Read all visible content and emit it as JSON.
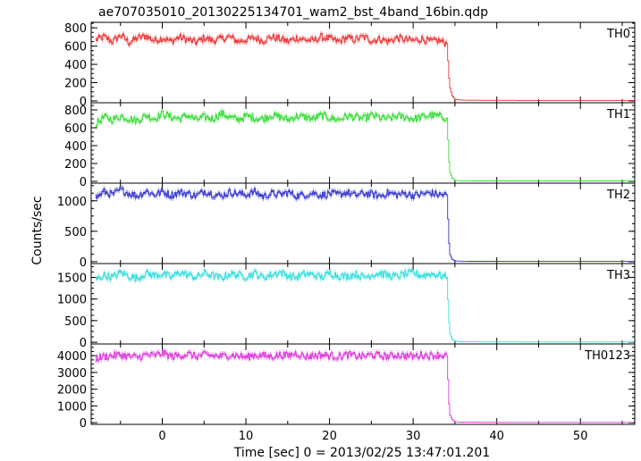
{
  "chart_data": {
    "type": "line",
    "title": "ae707035010_20130225134701_wam2_bst_4band_16bin.qdp",
    "xlabel": "Time [sec] 0 = 2013/02/25 13:47:01.201",
    "ylabel": "Counts/sec",
    "xlim": [
      -8.5,
      56.5
    ],
    "xticks": [
      0,
      10,
      20,
      30,
      40,
      50
    ],
    "x_tick_labels": [
      "0",
      "10",
      "20",
      "30",
      "40",
      "50"
    ],
    "drop_time": 34.0,
    "panels": [
      {
        "name": "TH0",
        "color": "#ee3333",
        "ylim": [
          -20,
          860
        ],
        "yticks": [
          0,
          200,
          400,
          600,
          800
        ],
        "y_tick_labels": [
          "0",
          "200",
          "400",
          "600",
          "800"
        ],
        "series": {
          "x": [
            -8,
            -7,
            -6,
            -5,
            -4,
            -3,
            -2,
            -1,
            0,
            1,
            2,
            3,
            4,
            5,
            6,
            7,
            8,
            9,
            10,
            11,
            12,
            13,
            14,
            15,
            16,
            17,
            18,
            19,
            20,
            21,
            22,
            23,
            24,
            25,
            26,
            27,
            28,
            29,
            30,
            31,
            32,
            33,
            34,
            34.3,
            34.6,
            35,
            36,
            38,
            40,
            42,
            44,
            46,
            48,
            50,
            52,
            54,
            56
          ],
          "y": [
            670,
            700,
            650,
            720,
            640,
            690,
            710,
            660,
            690,
            650,
            700,
            670,
            640,
            690,
            660,
            680,
            700,
            650,
            670,
            690,
            660,
            700,
            680,
            650,
            690,
            670,
            660,
            700,
            680,
            650,
            690,
            670,
            700,
            660,
            680,
            650,
            690,
            670,
            660,
            680,
            650,
            660,
            630,
            170,
            60,
            15,
            8,
            7,
            6,
            6,
            5,
            5,
            5,
            5,
            5,
            5,
            5
          ]
        }
      },
      {
        "name": "TH1",
        "color": "#33dd33",
        "ylim": [
          -20,
          880
        ],
        "yticks": [
          0,
          200,
          400,
          600,
          800
        ],
        "y_tick_labels": [
          "0",
          "200",
          "400",
          "600",
          "800"
        ],
        "series": {
          "x": [
            -8,
            -7,
            -6,
            -5,
            -4,
            -3,
            -2,
            -1,
            0,
            1,
            2,
            3,
            4,
            5,
            6,
            7,
            8,
            9,
            10,
            11,
            12,
            13,
            14,
            15,
            16,
            17,
            18,
            19,
            20,
            21,
            22,
            23,
            24,
            25,
            26,
            27,
            28,
            29,
            30,
            31,
            32,
            33,
            34,
            34.3,
            34.6,
            35,
            36,
            38,
            40,
            42,
            44,
            46,
            48,
            50,
            52,
            54,
            56
          ],
          "y": [
            640,
            720,
            690,
            730,
            700,
            680,
            740,
            700,
            760,
            720,
            700,
            740,
            690,
            720,
            700,
            760,
            720,
            690,
            730,
            710,
            700,
            740,
            720,
            690,
            730,
            720,
            700,
            740,
            710,
            690,
            730,
            720,
            700,
            740,
            710,
            700,
            730,
            720,
            700,
            720,
            740,
            730,
            710,
            120,
            40,
            10,
            6,
            5,
            5,
            5,
            5,
            5,
            5,
            5,
            5,
            5,
            5
          ]
        }
      },
      {
        "name": "TH2",
        "color": "#3333cc",
        "ylim": [
          -30,
          1290
        ],
        "yticks": [
          0,
          500,
          1000
        ],
        "y_tick_labels": [
          "0",
          "500",
          "1000"
        ],
        "series": {
          "x": [
            -8,
            -7,
            -6,
            -5,
            -4,
            -3,
            -2,
            -1,
            0,
            1,
            2,
            3,
            4,
            5,
            6,
            7,
            8,
            9,
            10,
            11,
            12,
            13,
            14,
            15,
            16,
            17,
            18,
            19,
            20,
            21,
            22,
            23,
            24,
            25,
            26,
            27,
            28,
            29,
            30,
            31,
            32,
            33,
            34,
            34.3,
            34.6,
            35,
            36,
            38,
            40,
            42,
            44,
            46,
            48,
            50,
            52,
            54,
            56
          ],
          "y": [
            1050,
            1150,
            1100,
            1180,
            1120,
            1080,
            1160,
            1100,
            1150,
            1090,
            1140,
            1120,
            1080,
            1160,
            1110,
            1080,
            1140,
            1120,
            1100,
            1150,
            1070,
            1120,
            1100,
            1140,
            1080,
            1100,
            1130,
            1090,
            1120,
            1100,
            1140,
            1090,
            1120,
            1110,
            1080,
            1130,
            1100,
            1120,
            1090,
            1110,
            1130,
            1100,
            1100,
            140,
            40,
            12,
            8,
            6,
            6,
            5,
            5,
            5,
            5,
            5,
            5,
            5,
            5
          ]
        }
      },
      {
        "name": "TH3",
        "color": "#33dddd",
        "ylim": [
          -40,
          1820
        ],
        "yticks": [
          0,
          500,
          1000,
          1500
        ],
        "y_tick_labels": [
          "0",
          "500",
          "1000",
          "1500"
        ],
        "series": {
          "x": [
            -8,
            -7,
            -6,
            -5,
            -4,
            -3,
            -2,
            -1,
            0,
            1,
            2,
            3,
            4,
            5,
            6,
            7,
            8,
            9,
            10,
            11,
            12,
            13,
            14,
            15,
            16,
            17,
            18,
            19,
            20,
            21,
            22,
            23,
            24,
            25,
            26,
            27,
            28,
            29,
            30,
            31,
            32,
            33,
            34,
            34.3,
            34.6,
            35,
            36,
            38,
            40,
            42,
            44,
            46,
            48,
            50,
            52,
            54,
            56
          ],
          "y": [
            1450,
            1550,
            1500,
            1620,
            1520,
            1480,
            1600,
            1540,
            1580,
            1500,
            1620,
            1560,
            1500,
            1600,
            1540,
            1480,
            1580,
            1560,
            1520,
            1600,
            1500,
            1560,
            1620,
            1540,
            1500,
            1580,
            1560,
            1500,
            1600,
            1540,
            1520,
            1580,
            1500,
            1560,
            1600,
            1540,
            1520,
            1580,
            1600,
            1540,
            1580,
            1560,
            1500,
            250,
            80,
            20,
            10,
            8,
            7,
            7,
            6,
            6,
            6,
            6,
            6,
            6,
            6
          ]
        }
      },
      {
        "name": "TH0123",
        "color": "#dd33dd",
        "ylim": [
          -100,
          4700
        ],
        "yticks": [
          0,
          1000,
          2000,
          3000,
          4000
        ],
        "y_tick_labels": [
          "0",
          "1000",
          "2000",
          "3000",
          "4000"
        ],
        "series": {
          "x": [
            -8,
            -7,
            -6,
            -5,
            -4,
            -3,
            -2,
            -1,
            0,
            1,
            2,
            3,
            4,
            5,
            6,
            7,
            8,
            9,
            10,
            11,
            12,
            13,
            14,
            15,
            16,
            17,
            18,
            19,
            20,
            21,
            22,
            23,
            24,
            25,
            26,
            27,
            28,
            29,
            30,
            31,
            32,
            33,
            34,
            34.3,
            34.6,
            35,
            36,
            38,
            40,
            42,
            44,
            46,
            48,
            50,
            52,
            54,
            56
          ],
          "y": [
            3850,
            3950,
            4000,
            4050,
            3950,
            3900,
            4050,
            4000,
            4150,
            3950,
            4000,
            4100,
            3950,
            4050,
            4000,
            3950,
            4050,
            4000,
            3900,
            4050,
            4000,
            3950,
            4050,
            4000,
            4150,
            3950,
            4000,
            4050,
            4000,
            3950,
            4050,
            4000,
            3950,
            4050,
            4000,
            3950,
            4050,
            4000,
            3950,
            4050,
            4000,
            4050,
            4000,
            550,
            200,
            50,
            30,
            25,
            20,
            20,
            20,
            20,
            20,
            20,
            20,
            20,
            20
          ]
        }
      }
    ]
  }
}
